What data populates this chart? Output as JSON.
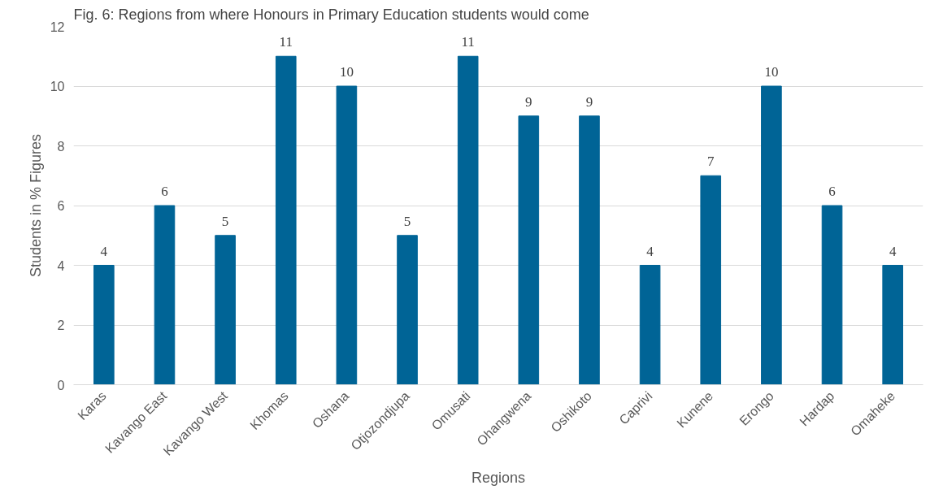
{
  "chart_data": {
    "type": "bar",
    "title": "Fig. 6: Regions from where Honours in Primary Education students would come",
    "xlabel": "Regions",
    "ylabel": "Students in % Figures",
    "categories": [
      "Karas",
      "Kavango East",
      "Kavango West",
      "Khomas",
      "Oshana",
      "Otjozondjupa",
      "Omusati",
      "Ohangwena",
      "Oshikoto",
      "Caprivi",
      "Kunene",
      "Erongo",
      "Hardap",
      "Omaheke"
    ],
    "values": [
      4,
      6,
      5,
      11,
      10,
      5,
      11,
      9,
      9,
      4,
      7,
      10,
      6,
      4
    ],
    "color": "#006496",
    "ylim": [
      0,
      12
    ],
    "yticks": [
      0,
      2,
      4,
      6,
      8,
      10,
      12
    ],
    "grid": "y",
    "data_labels": true
  }
}
